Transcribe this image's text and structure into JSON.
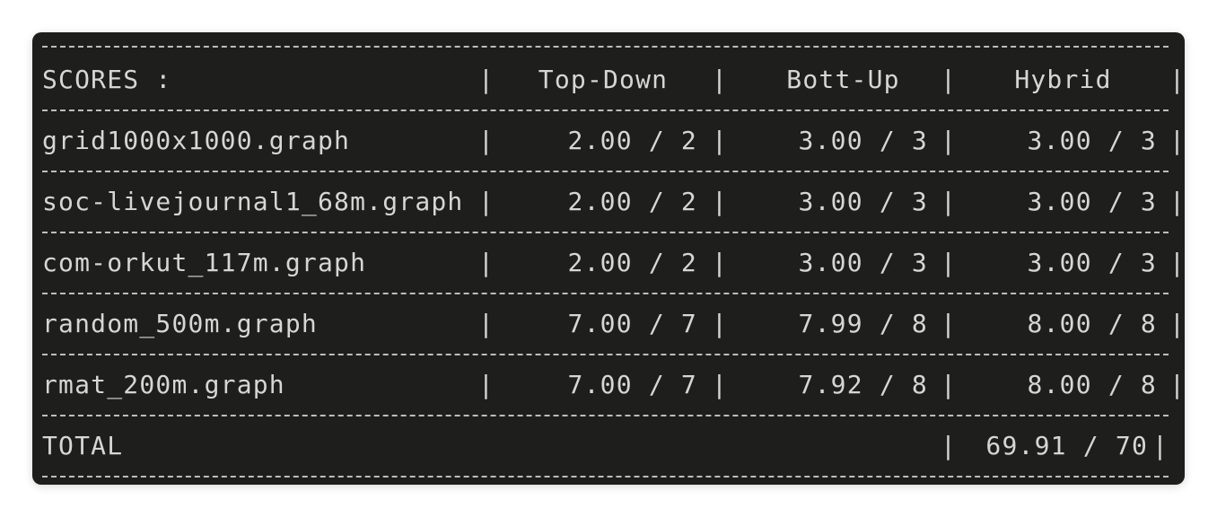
{
  "table": {
    "header": {
      "label": "SCORES :",
      "columns": [
        "Top-Down",
        "Bott-Up",
        "Hybrid"
      ]
    },
    "separator": "|",
    "rows": [
      {
        "name": "grid1000x1000.graph",
        "scores": [
          "2.00 / 2",
          "3.00 / 3",
          "3.00 / 3"
        ]
      },
      {
        "name": "soc-livejournal1_68m.graph",
        "scores": [
          "2.00 / 2",
          "3.00 / 3",
          "3.00 / 3"
        ]
      },
      {
        "name": "com-orkut_117m.graph",
        "scores": [
          "2.00 / 2",
          "3.00 / 3",
          "3.00 / 3"
        ]
      },
      {
        "name": "random_500m.graph",
        "scores": [
          "7.00 / 7",
          "7.99 / 8",
          "8.00 / 8"
        ]
      },
      {
        "name": "rmat_200m.graph",
        "scores": [
          "7.00 / 7",
          "7.92 / 8",
          "8.00 / 8"
        ]
      }
    ],
    "total": {
      "label": "TOTAL",
      "value": "69.91 / 70"
    }
  },
  "colors": {
    "background": "#1e1e1c",
    "text": "#d6d6d6"
  }
}
